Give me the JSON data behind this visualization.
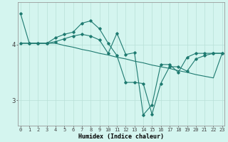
{
  "xlabel": "Humidex (Indice chaleur)",
  "bg_color": "#d4f5ef",
  "line_color": "#1e7a70",
  "grid_color": "#b8e0d8",
  "x_ticks": [
    0,
    1,
    2,
    3,
    4,
    5,
    6,
    7,
    8,
    9,
    10,
    11,
    12,
    13,
    14,
    15,
    16,
    17,
    18,
    19,
    20,
    21,
    22,
    23
  ],
  "y_ticks": [
    3,
    4
  ],
  "ylim": [
    2.55,
    4.75
  ],
  "xlim": [
    -0.3,
    23.3
  ],
  "line1_x": [
    0,
    1,
    2,
    3,
    4,
    5,
    6,
    7,
    8,
    9,
    10,
    11,
    12,
    13,
    14,
    15,
    16,
    17,
    18,
    19,
    20,
    21,
    22,
    23
  ],
  "line1_y": [
    4.55,
    4.02,
    4.02,
    4.02,
    4.12,
    4.18,
    4.22,
    4.38,
    4.42,
    4.28,
    4.02,
    3.8,
    3.32,
    3.32,
    3.3,
    2.75,
    3.3,
    3.6,
    3.6,
    3.52,
    3.74,
    3.8,
    3.84,
    3.84
  ],
  "line2_x": [
    0,
    1,
    2,
    3,
    4,
    5,
    6,
    7,
    8,
    9,
    10,
    11,
    12,
    13,
    14,
    15,
    16,
    17,
    18,
    19,
    20,
    21,
    22,
    23
  ],
  "line2_y": [
    4.02,
    4.02,
    4.02,
    4.02,
    4.02,
    3.98,
    3.95,
    3.91,
    3.88,
    3.84,
    3.81,
    3.77,
    3.74,
    3.7,
    3.67,
    3.63,
    3.6,
    3.57,
    3.53,
    3.5,
    3.46,
    3.43,
    3.4,
    3.84
  ],
  "line3_x": [
    0,
    1,
    2,
    3,
    4,
    5,
    6,
    7,
    8,
    9,
    10,
    11,
    12,
    13,
    14,
    15,
    16,
    17,
    18,
    19,
    20,
    21,
    22,
    23
  ],
  "line3_y": [
    4.02,
    4.02,
    4.02,
    4.02,
    4.05,
    4.1,
    4.15,
    4.18,
    4.15,
    4.08,
    3.84,
    4.2,
    3.82,
    3.85,
    2.74,
    2.92,
    3.64,
    3.64,
    3.5,
    3.77,
    3.84,
    3.84,
    3.84,
    3.84
  ],
  "marker": "D",
  "markersize": 1.8,
  "linewidth": 0.8,
  "tick_fontsize": 5.0,
  "ytick_fontsize": 6.5,
  "xlabel_fontsize": 6.0
}
